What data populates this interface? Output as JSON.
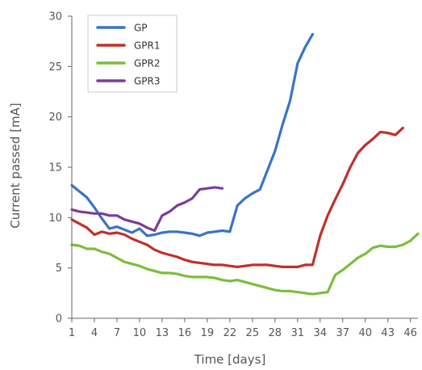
{
  "chart_data": {
    "type": "line",
    "xlabel": "Time [days]",
    "ylabel": "Current passed [mA]",
    "xlim": [
      1,
      47
    ],
    "ylim": [
      0,
      30
    ],
    "x_ticks": [
      1,
      4,
      7,
      10,
      13,
      16,
      19,
      22,
      25,
      28,
      31,
      34,
      37,
      40,
      43,
      46
    ],
    "y_ticks": [
      0,
      5,
      10,
      15,
      20,
      25,
      30
    ],
    "grid": false,
    "legend_position": "top-left",
    "series": [
      {
        "name": "GP",
        "color": "#3a74c4",
        "x": [
          1,
          2,
          3,
          4,
          5,
          6,
          7,
          8,
          9,
          10,
          11,
          12,
          13,
          14,
          15,
          16,
          17,
          18,
          19,
          20,
          21,
          22,
          23,
          24,
          25,
          26,
          27,
          28,
          29,
          30,
          31,
          32,
          33
        ],
        "y": [
          13.2,
          12.6,
          12.0,
          11.0,
          9.9,
          8.9,
          9.1,
          8.8,
          8.5,
          8.9,
          8.2,
          8.3,
          8.5,
          8.6,
          8.6,
          8.5,
          8.4,
          8.2,
          8.5,
          8.6,
          8.7,
          8.6,
          11.2,
          11.9,
          12.4,
          12.8,
          14.7,
          16.6,
          19.2,
          21.6,
          25.3,
          26.9,
          28.2
        ]
      },
      {
        "name": "GPR1",
        "color": "#c0302b",
        "x": [
          1,
          2,
          3,
          4,
          5,
          6,
          7,
          8,
          9,
          10,
          11,
          12,
          13,
          14,
          15,
          16,
          17,
          18,
          19,
          20,
          21,
          22,
          23,
          24,
          25,
          26,
          27,
          28,
          29,
          30,
          31,
          32,
          33,
          34,
          35,
          36,
          37,
          38,
          39,
          40,
          41,
          42,
          43,
          44,
          45
        ],
        "y": [
          9.8,
          9.4,
          9.0,
          8.3,
          8.6,
          8.4,
          8.5,
          8.3,
          7.9,
          7.6,
          7.3,
          6.8,
          6.5,
          6.3,
          6.1,
          5.8,
          5.6,
          5.5,
          5.4,
          5.3,
          5.3,
          5.2,
          5.1,
          5.2,
          5.3,
          5.3,
          5.3,
          5.2,
          5.1,
          5.1,
          5.1,
          5.3,
          5.3,
          8.2,
          10.2,
          11.8,
          13.3,
          15.0,
          16.4,
          17.2,
          17.8,
          18.5,
          18.4,
          18.2,
          18.9
        ]
      },
      {
        "name": "GPR2",
        "color": "#7cbd3c",
        "x": [
          1,
          2,
          3,
          4,
          5,
          6,
          7,
          8,
          9,
          10,
          11,
          12,
          13,
          14,
          15,
          16,
          17,
          18,
          19,
          20,
          21,
          22,
          23,
          24,
          25,
          26,
          27,
          28,
          29,
          30,
          31,
          32,
          33,
          34,
          35,
          36,
          37,
          38,
          39,
          40,
          41,
          42,
          43,
          44,
          45,
          46,
          47
        ],
        "y": [
          7.3,
          7.2,
          6.9,
          6.9,
          6.6,
          6.4,
          6.0,
          5.6,
          5.4,
          5.2,
          4.9,
          4.7,
          4.5,
          4.5,
          4.4,
          4.2,
          4.1,
          4.1,
          4.1,
          4.0,
          3.8,
          3.7,
          3.8,
          3.6,
          3.4,
          3.2,
          3.0,
          2.8,
          2.7,
          2.7,
          2.6,
          2.5,
          2.4,
          2.5,
          2.6,
          4.3,
          4.8,
          5.4,
          6.0,
          6.4,
          7.0,
          7.2,
          7.1,
          7.1,
          7.3,
          7.7,
          8.4
        ]
      },
      {
        "name": "GPR3",
        "color": "#7a3d9a",
        "x": [
          1,
          2,
          3,
          4,
          5,
          6,
          7,
          8,
          9,
          10,
          11,
          12,
          13,
          14,
          15,
          16,
          17,
          18,
          19,
          20,
          21
        ],
        "y": [
          10.8,
          10.6,
          10.5,
          10.4,
          10.4,
          10.2,
          10.2,
          9.8,
          9.6,
          9.4,
          9.0,
          8.7,
          10.2,
          10.6,
          11.2,
          11.5,
          11.9,
          12.8,
          12.9,
          13.0,
          12.9
        ]
      }
    ]
  }
}
